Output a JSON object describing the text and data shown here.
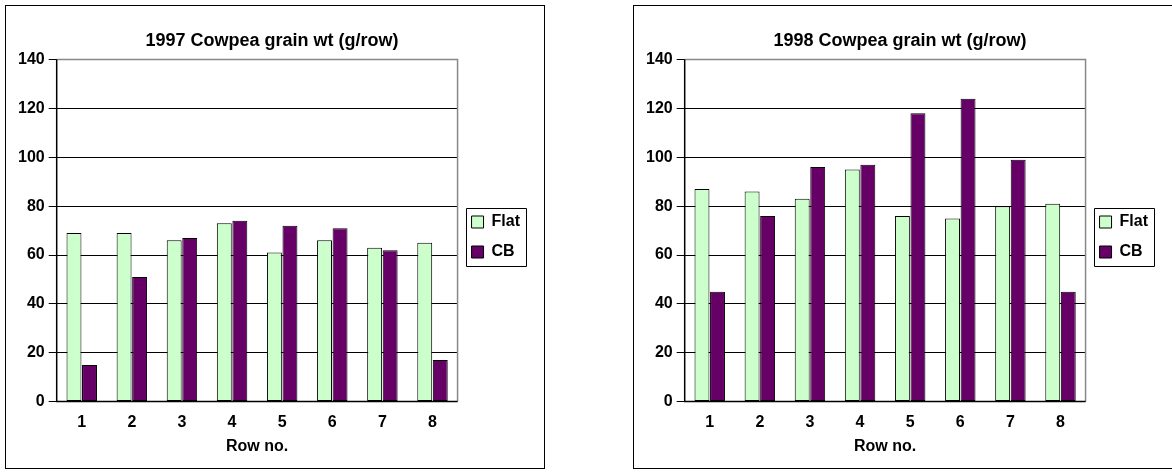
{
  "chart_data": [
    {
      "type": "bar",
      "title": "1997 Cowpea grain wt (g/row)",
      "xlabel": "Row no.",
      "categories": [
        "1",
        "2",
        "3",
        "4",
        "5",
        "6",
        "7",
        "8"
      ],
      "series": [
        {
          "name": "Flat",
          "color": "#ccffcc",
          "values": [
            69,
            69,
            66,
            73,
            61,
            66,
            63,
            65
          ]
        },
        {
          "name": "CB",
          "color": "#660066",
          "values": [
            15,
            51,
            67,
            74,
            72,
            71,
            62,
            17
          ]
        }
      ],
      "ylim": [
        0,
        140
      ],
      "yticks": [
        0,
        20,
        40,
        60,
        80,
        100,
        120,
        140
      ],
      "grid": "y",
      "legend": "right"
    },
    {
      "type": "bar",
      "title": "1998 Cowpea grain wt (g/row)",
      "xlabel": "Row no.",
      "categories": [
        "1",
        "2",
        "3",
        "4",
        "5",
        "6",
        "7",
        "8"
      ],
      "series": [
        {
          "name": "Flat",
          "color": "#ccffcc",
          "values": [
            87,
            86,
            83,
            95,
            76,
            75,
            80,
            81
          ]
        },
        {
          "name": "CB",
          "color": "#660066",
          "values": [
            45,
            76,
            96,
            97,
            118,
            124,
            99,
            45
          ]
        }
      ],
      "ylim": [
        0,
        140
      ],
      "yticks": [
        0,
        20,
        40,
        60,
        80,
        100,
        120,
        140
      ],
      "grid": "y",
      "legend": "right"
    }
  ]
}
